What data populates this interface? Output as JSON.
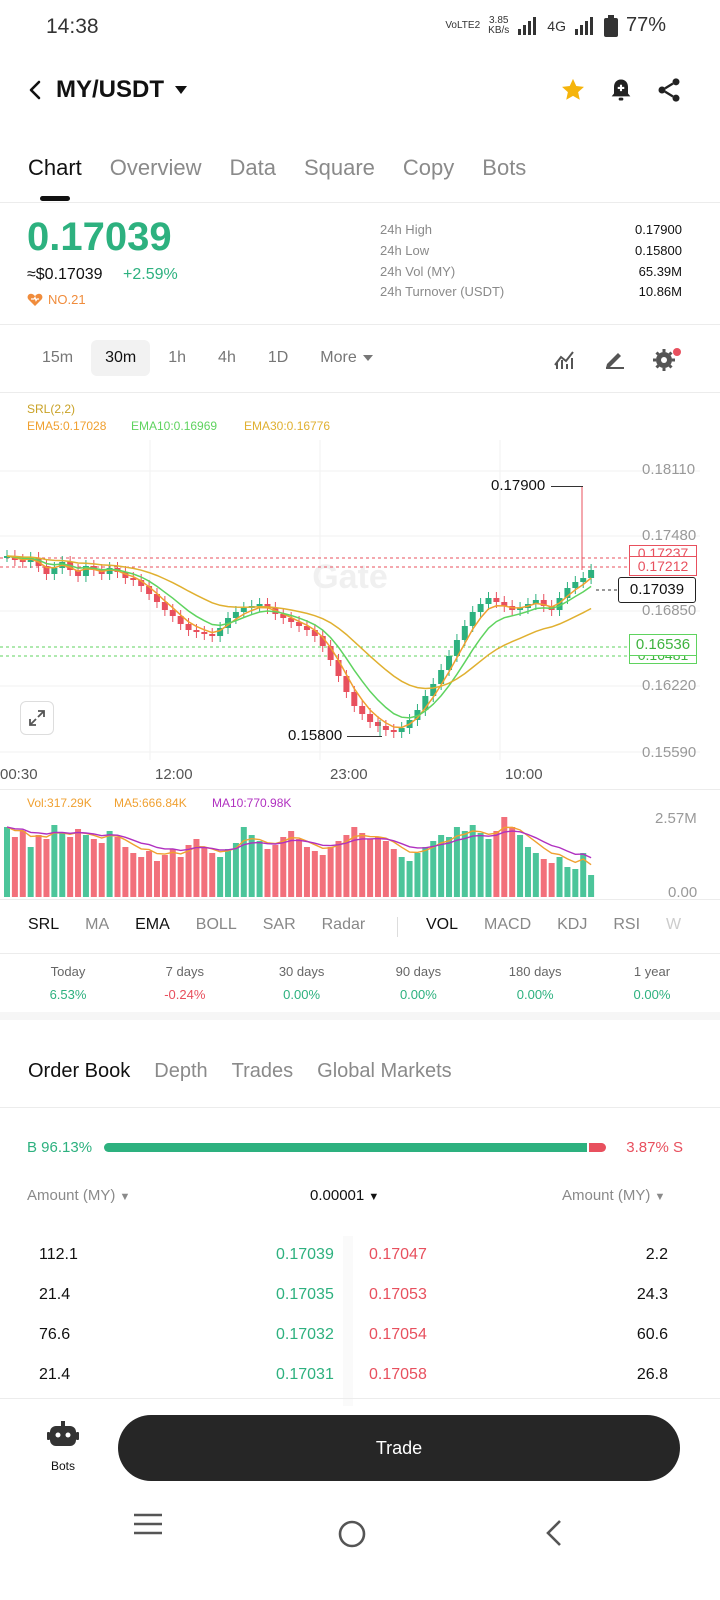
{
  "status_bar": {
    "time": "14:38",
    "volte": "VoLTE2",
    "speed_value": "3.85",
    "speed_unit": "KB/s",
    "network": "4G",
    "battery": "77%"
  },
  "header": {
    "pair": "MY/USDT",
    "icons": [
      "back-icon",
      "star-icon",
      "bell-plus-icon",
      "share-icon"
    ]
  },
  "tabs": [
    {
      "label": "Chart",
      "active": true
    },
    {
      "label": "Overview"
    },
    {
      "label": "Data"
    },
    {
      "label": "Square"
    },
    {
      "label": "Copy"
    },
    {
      "label": "Bots"
    }
  ],
  "price": {
    "last": "0.17039",
    "usd": "≈$0.17039",
    "change": "+2.59%",
    "rank": "NO.21"
  },
  "stats": [
    {
      "label": "24h High",
      "value": "0.17900"
    },
    {
      "label": "24h Low",
      "value": "0.15800"
    },
    {
      "label": "24h Vol (MY)",
      "value": "65.39M"
    },
    {
      "label": "24h Turnover (USDT)",
      "value": "10.86M"
    }
  ],
  "timeframes": {
    "items": [
      "15m",
      "30m",
      "1h",
      "4h",
      "1D"
    ],
    "active": "30m",
    "more": "More"
  },
  "chart": {
    "srl": "SRL(2,2)",
    "ema5": "EMA5:0.17028",
    "ema10": "EMA10:0.16969",
    "ema30": "EMA30:0.16776",
    "high_marker": "0.17900",
    "low_marker": "0.15800",
    "y_ticks": [
      "0.18110",
      "0.17480",
      "0.16850",
      "0.16220",
      "0.15590"
    ],
    "line_red_upper": "0.17237",
    "line_red": "0.17212",
    "current_price": "0.17039",
    "line_green": "0.16536",
    "line_green_lower": "0.16481",
    "x_ticks": [
      "00:30",
      "12:00",
      "23:00",
      "10:00"
    ],
    "watermark": "Gate",
    "colors": {
      "up": "#2db17f",
      "down": "#e8505e",
      "ema5": "#f0a030",
      "ema10": "#5fd35f",
      "ema30": "#e0b030"
    }
  },
  "volume": {
    "vol": "Vol:317.29K",
    "ma5": "MA5:666.84K",
    "ma10": "MA10:770.98K",
    "y_max": "2.57M",
    "y_min": "0.00"
  },
  "indicators": {
    "main": [
      "SRL",
      "MA",
      "EMA",
      "BOLL",
      "SAR",
      "Radar"
    ],
    "sub": [
      "VOL",
      "MACD",
      "KDJ",
      "RSI",
      "W"
    ],
    "active": [
      "SRL",
      "EMA",
      "VOL"
    ]
  },
  "performance": [
    {
      "label": "Today",
      "value": "6.53%",
      "tone": "up"
    },
    {
      "label": "7 days",
      "value": "-0.24%",
      "tone": "down"
    },
    {
      "label": "30 days",
      "value": "0.00%",
      "tone": "up"
    },
    {
      "label": "90 days",
      "value": "0.00%",
      "tone": "up"
    },
    {
      "label": "180 days",
      "value": "0.00%",
      "tone": "up"
    },
    {
      "label": "1 year",
      "value": "0.00%",
      "tone": "up"
    }
  ],
  "order_book": {
    "tabs": [
      "Order Book",
      "Depth",
      "Trades",
      "Global Markets"
    ],
    "active_tab": "Order Book",
    "buy_label": "B 96.13%",
    "sell_label": "3.87% S",
    "buy_ratio": 0.9613,
    "col_left": "Amount (MY)",
    "precision": "0.00001",
    "col_right": "Amount (MY)",
    "rows": [
      {
        "bid_amount": "112.1",
        "bid_price": "0.17039",
        "ask_price": "0.17047",
        "ask_amount": "2.2"
      },
      {
        "bid_amount": "21.4",
        "bid_price": "0.17035",
        "ask_price": "0.17053",
        "ask_amount": "24.3"
      },
      {
        "bid_amount": "76.6",
        "bid_price": "0.17032",
        "ask_price": "0.17054",
        "ask_amount": "60.6"
      },
      {
        "bid_amount": "21.4",
        "bid_price": "0.17031",
        "ask_price": "0.17058",
        "ask_amount": "26.8"
      }
    ]
  },
  "bottom": {
    "bots_label": "Bots",
    "trade_label": "Trade"
  }
}
